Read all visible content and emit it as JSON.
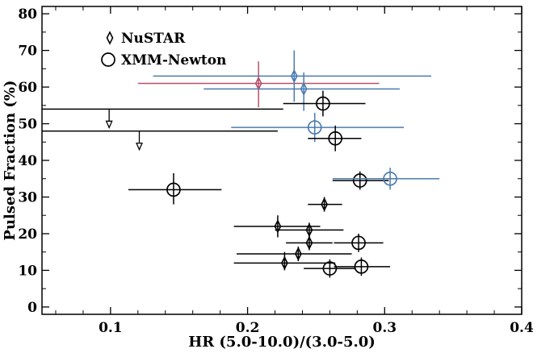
{
  "chart_data": {
    "type": "scatter",
    "xlabel": "HR (5.0-10.0)/(3.0-5.0)",
    "ylabel": "Pulsed Fraction (%)",
    "xlim": [
      0.05,
      0.4
    ],
    "ylim": [
      -2,
      82
    ],
    "xticks": [
      0.1,
      0.2,
      0.3,
      0.4
    ],
    "xtick_labels": [
      "0.1",
      "0.2",
      "0.3",
      "0.4"
    ],
    "yticks": [
      0,
      10,
      20,
      30,
      40,
      50,
      60,
      70,
      80
    ],
    "ytick_labels": [
      "0",
      "10",
      "20",
      "30",
      "40",
      "50",
      "60",
      "70",
      "80"
    ],
    "grid": false,
    "legend_position": "top-left",
    "legend": [
      {
        "name": "NuSTAR",
        "marker": "diamond"
      },
      {
        "name": "XMM-Newton",
        "marker": "circle"
      }
    ],
    "colors": {
      "black": "#000000",
      "blue": "#4a7bb0",
      "red": "#b8506a"
    },
    "series": [
      {
        "name": "NuSTAR",
        "marker": "diamond",
        "points": [
          {
            "x": 0.208,
            "y": 61,
            "xlo": 0.12,
            "xhi": 0.296,
            "ylo": 54.5,
            "yhi": 67,
            "color": "red"
          },
          {
            "x": 0.234,
            "y": 63,
            "xlo": 0.131,
            "xhi": 0.334,
            "ylo": 56,
            "yhi": 70,
            "color": "blue"
          },
          {
            "x": 0.241,
            "y": 59.5,
            "xlo": 0.168,
            "xhi": 0.311,
            "ylo": 53.5,
            "yhi": 64,
            "color": "blue"
          },
          {
            "x": 0.256,
            "y": 28,
            "xlo": 0.244,
            "xhi": 0.269,
            "ylo": 26,
            "yhi": 30,
            "color": "black"
          },
          {
            "x": 0.222,
            "y": 22,
            "xlo": 0.19,
            "xhi": 0.253,
            "ylo": 19,
            "yhi": 25,
            "color": "black"
          },
          {
            "x": 0.245,
            "y": 21,
            "xlo": 0.22,
            "xhi": 0.27,
            "ylo": 19,
            "yhi": 23,
            "color": "black"
          },
          {
            "x": 0.245,
            "y": 17.5,
            "xlo": 0.228,
            "xhi": 0.262,
            "ylo": 15.5,
            "yhi": 19.5,
            "color": "black"
          },
          {
            "x": 0.237,
            "y": 14.5,
            "xlo": 0.192,
            "xhi": 0.276,
            "ylo": 12.5,
            "yhi": 16.5,
            "color": "black"
          },
          {
            "x": 0.227,
            "y": 12,
            "xlo": 0.19,
            "xhi": 0.264,
            "ylo": 10,
            "yhi": 15,
            "color": "black"
          }
        ]
      },
      {
        "name": "XMM-Newton",
        "marker": "circle",
        "points": [
          {
            "x": 0.255,
            "y": 55.5,
            "xlo": 0.226,
            "xhi": 0.286,
            "ylo": 52,
            "yhi": 59,
            "color": "black"
          },
          {
            "x": 0.249,
            "y": 49,
            "xlo": 0.188,
            "xhi": 0.314,
            "ylo": 45,
            "yhi": 53,
            "color": "blue"
          },
          {
            "x": 0.264,
            "y": 46,
            "xlo": 0.244,
            "xhi": 0.283,
            "ylo": 42.5,
            "yhi": 49.5,
            "color": "black"
          },
          {
            "x": 0.146,
            "y": 32,
            "xlo": 0.113,
            "xhi": 0.181,
            "ylo": 28,
            "yhi": 36.5,
            "color": "black"
          },
          {
            "x": 0.282,
            "y": 34.5,
            "xlo": 0.262,
            "xhi": 0.303,
            "ylo": 32,
            "yhi": 37,
            "color": "black"
          },
          {
            "x": 0.304,
            "y": 35,
            "xlo": 0.262,
            "xhi": 0.34,
            "ylo": 32,
            "yhi": 38,
            "color": "blue"
          },
          {
            "x": 0.281,
            "y": 17.5,
            "xlo": 0.263,
            "xhi": 0.299,
            "ylo": 15,
            "yhi": 20,
            "color": "black"
          },
          {
            "x": 0.26,
            "y": 10.5,
            "xlo": 0.241,
            "xhi": 0.279,
            "ylo": 8,
            "yhi": 13,
            "color": "black"
          },
          {
            "x": 0.283,
            "y": 11,
            "xlo": 0.263,
            "xhi": 0.304,
            "ylo": 8.5,
            "yhi": 13.5,
            "color": "black"
          }
        ]
      },
      {
        "name": "",
        "marker": "upper-limit",
        "points": [
          {
            "x": 0.099,
            "y": 54,
            "xlo": 0.05,
            "xhi": 0.226,
            "color": "black"
          },
          {
            "x": 0.121,
            "y": 48,
            "xlo": 0.05,
            "xhi": 0.222,
            "color": "black"
          }
        ]
      }
    ]
  }
}
